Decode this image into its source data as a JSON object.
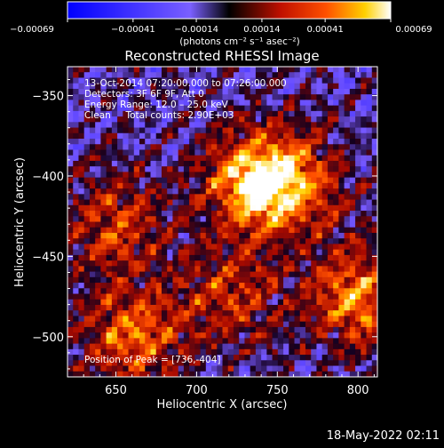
{
  "chart_data": {
    "type": "heatmap",
    "title": "Reconstructed RHESSI Image",
    "xlabel": "Heliocentric X (arcsec)",
    "ylabel": "Heliocentric Y (arcsec)",
    "xlim": [
      620,
      812
    ],
    "ylim": [
      -525,
      -332
    ],
    "x_ticks": [
      "650",
      "700",
      "750",
      "800"
    ],
    "y_ticks": [
      "-350",
      "-400",
      "-450",
      "-500"
    ],
    "colorbar": {
      "colormap": "blue-to-red-yellow-white (RHESSI)",
      "range": [
        -0.00069,
        0.00069
      ],
      "tick_labels": [
        "−0.00069",
        "−0.00041",
        "−0.00014",
        "0.00014",
        "0.00041",
        "0.00069"
      ],
      "units": "(photons cm⁻² s⁻¹ asec⁻²)"
    },
    "annotations": [
      "13-Oct-2014 07:20:00.000 to 07:26:00.000",
      "Detectors: 3F 6F 9F, Att 0",
      "Energy Range: 12.0 – 25.0 keV",
      "Clean     Total counts: 2.90E+03"
    ],
    "peak_label": "Position of Peak = [736,-404]",
    "peak": [
      736,
      -404
    ],
    "bright_regions": [
      {
        "x": 736,
        "y": -404,
        "level": 1.0
      },
      {
        "x": 800,
        "y": -475,
        "level": 0.85
      },
      {
        "x": 660,
        "y": -500,
        "level": 0.75
      },
      {
        "x": 650,
        "y": -430,
        "level": 0.6
      },
      {
        "x": 760,
        "y": -405,
        "level": 0.65
      },
      {
        "x": 720,
        "y": -475,
        "level": 0.55
      }
    ]
  },
  "footer": {
    "timestamp": "18-May-2022 02:11"
  }
}
